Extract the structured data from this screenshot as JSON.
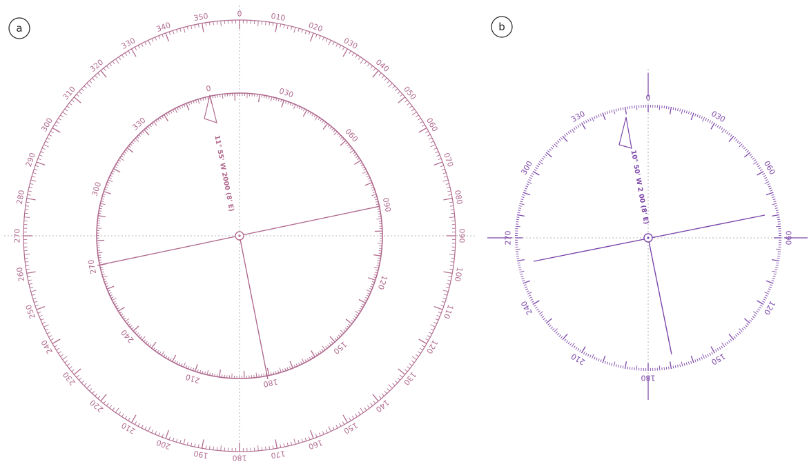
{
  "colors": {
    "rose_a": "#b06a8e",
    "rose_b": "#7b45a8",
    "crosshair": "#9a9a9a",
    "label_ink": "#222222"
  },
  "panels": [
    {
      "label": "a",
      "outer_ring": {
        "labels": [
          "0",
          "010",
          "020",
          "030",
          "040",
          "050",
          "060",
          "070",
          "080",
          "090",
          "100",
          "110",
          "120",
          "130",
          "140",
          "150",
          "160",
          "170",
          "180",
          "190",
          "200",
          "210",
          "220",
          "230",
          "240",
          "250",
          "260",
          "270",
          "280",
          "290",
          "300",
          "310",
          "320",
          "330",
          "340",
          "350"
        ]
      },
      "inner_ring": {
        "labels": [
          "0",
          "030",
          "060",
          "090",
          "120",
          "150",
          "180",
          "210",
          "240",
          "270",
          "300",
          "330"
        ],
        "rotation_deg": -11.9
      },
      "variation_text": "11° 55' W 2000 (8' E)"
    },
    {
      "label": "b",
      "ring": {
        "labels": [
          "0",
          "030",
          "060",
          "090",
          "120",
          "150",
          "180",
          "210",
          "240",
          "270",
          "300",
          "330"
        ],
        "rotation_deg": 0
      },
      "variation_text": "10° 50' W 2 00 (8' E)"
    }
  ]
}
